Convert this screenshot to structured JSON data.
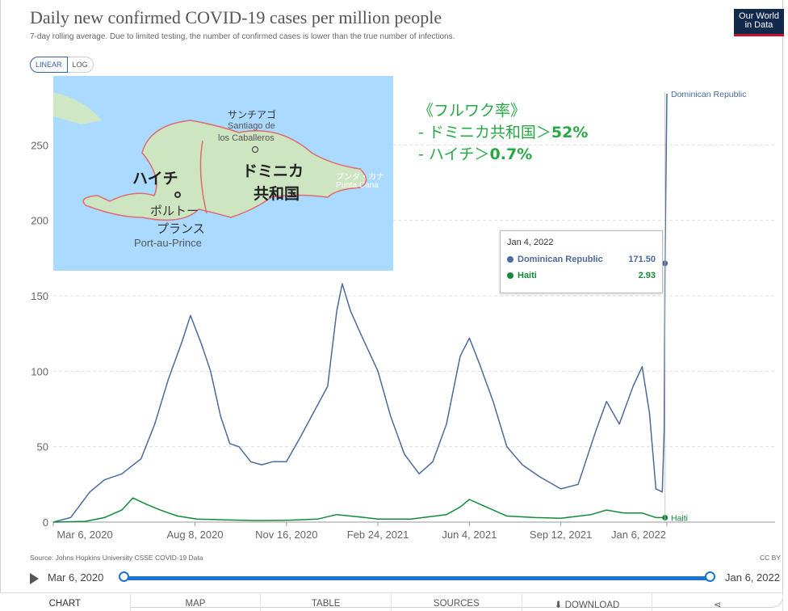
{
  "header": {
    "title": "Daily new confirmed COVID-19 cases per million people",
    "subtitle": "7-day rolling average. Due to limited testing, the number of confirmed cases is lower than the true number of infections.",
    "logo_line1": "Our World",
    "logo_line2": "in Data",
    "logo_bg": "#13294b",
    "logo_accent": "#c8102e"
  },
  "scale_toggle": {
    "linear_label": "LINEAR",
    "log_label": "LOG",
    "selected": "LINEAR"
  },
  "map_inset": {
    "labels": {
      "santiago_jp": "サンチアゴ",
      "santiago_es1": "Santiago de",
      "santiago_es2": "los Caballeros",
      "haiti_jp": "ハイチ",
      "dr_jp1": "ドミニカ",
      "dr_jp2": "共和国",
      "pap_jp1": "ポルトー",
      "pap_jp2": "プランス",
      "pap_en": "Port-au-Prince",
      "punta_jp": "プンタ・カナ",
      "punta_en": "Punta Cana"
    }
  },
  "annotation": {
    "heading": "《フルワク率》",
    "dr_prefix": "- ドミニカ共和国＞",
    "dr_value": "52%",
    "haiti_prefix": "- ハイチ＞",
    "haiti_value": "0.7%",
    "color": "#27a844"
  },
  "tooltip": {
    "date": "Jan 4, 2022",
    "rows": [
      {
        "name": "Dominican Republic",
        "value": "171.50",
        "color": "#4c6a9c"
      },
      {
        "name": "Haiti",
        "value": "2.93",
        "color": "#138a3a"
      }
    ]
  },
  "chart_data": {
    "type": "line",
    "title": "Daily new confirmed COVID-19 cases per million people",
    "ylim": [
      0,
      285
    ],
    "yticks": [
      0,
      50,
      100,
      150,
      200,
      250
    ],
    "xtick_labels": [
      "Mar 6, 2020",
      "Aug 8, 2020",
      "Nov 16, 2020",
      "Feb 24, 2021",
      "Jun 4, 2021",
      "Sep 12, 2021",
      "Jan 6, 2022"
    ],
    "grid": true,
    "series": [
      {
        "name": "Dominican Republic",
        "color": "#4c6a9c",
        "points": [
          [
            "2020-03-06",
            0
          ],
          [
            "2020-03-25",
            3
          ],
          [
            "2020-04-15",
            20
          ],
          [
            "2020-05-01",
            28
          ],
          [
            "2020-05-20",
            32
          ],
          [
            "2020-06-10",
            42
          ],
          [
            "2020-06-25",
            65
          ],
          [
            "2020-07-10",
            95
          ],
          [
            "2020-07-25",
            120
          ],
          [
            "2020-08-03",
            137
          ],
          [
            "2020-08-15",
            118
          ],
          [
            "2020-08-25",
            100
          ],
          [
            "2020-09-05",
            70
          ],
          [
            "2020-09-15",
            52
          ],
          [
            "2020-09-25",
            50
          ],
          [
            "2020-10-08",
            40
          ],
          [
            "2020-10-20",
            38
          ],
          [
            "2020-11-01",
            40
          ],
          [
            "2020-11-16",
            40
          ],
          [
            "2020-11-30",
            55
          ],
          [
            "2020-12-15",
            72
          ],
          [
            "2020-12-31",
            90
          ],
          [
            "2021-01-10",
            140
          ],
          [
            "2021-01-16",
            158
          ],
          [
            "2021-01-25",
            140
          ],
          [
            "2021-02-05",
            125
          ],
          [
            "2021-02-24",
            100
          ],
          [
            "2021-03-10",
            70
          ],
          [
            "2021-03-25",
            45
          ],
          [
            "2021-04-10",
            32
          ],
          [
            "2021-04-25",
            40
          ],
          [
            "2021-05-10",
            65
          ],
          [
            "2021-05-25",
            110
          ],
          [
            "2021-06-04",
            122
          ],
          [
            "2021-06-15",
            105
          ],
          [
            "2021-06-30",
            80
          ],
          [
            "2021-07-15",
            50
          ],
          [
            "2021-08-01",
            38
          ],
          [
            "2021-08-20",
            30
          ],
          [
            "2021-09-12",
            22
          ],
          [
            "2021-10-01",
            25
          ],
          [
            "2021-10-20",
            60
          ],
          [
            "2021-11-01",
            80
          ],
          [
            "2021-11-15",
            65
          ],
          [
            "2021-11-30",
            90
          ],
          [
            "2021-12-10",
            103
          ],
          [
            "2021-12-18",
            72
          ],
          [
            "2021-12-25",
            22
          ],
          [
            "2022-01-01",
            20
          ],
          [
            "2022-01-03",
            60
          ],
          [
            "2022-01-04",
            171.5
          ],
          [
            "2022-01-06",
            284
          ]
        ]
      },
      {
        "name": "Haiti",
        "color": "#138a3a",
        "points": [
          [
            "2020-03-06",
            0
          ],
          [
            "2020-04-10",
            0.5
          ],
          [
            "2020-05-01",
            3
          ],
          [
            "2020-05-20",
            8
          ],
          [
            "2020-06-01",
            16
          ],
          [
            "2020-06-15",
            12
          ],
          [
            "2020-07-01",
            8
          ],
          [
            "2020-07-20",
            4
          ],
          [
            "2020-08-10",
            2
          ],
          [
            "2020-09-10",
            1.5
          ],
          [
            "2020-10-15",
            1
          ],
          [
            "2020-11-16",
            1.2
          ],
          [
            "2020-12-20",
            2
          ],
          [
            "2021-01-10",
            5
          ],
          [
            "2021-02-10",
            3
          ],
          [
            "2021-02-24",
            2
          ],
          [
            "2021-04-01",
            2
          ],
          [
            "2021-05-10",
            5
          ],
          [
            "2021-05-25",
            10
          ],
          [
            "2021-06-04",
            15
          ],
          [
            "2021-06-15",
            12
          ],
          [
            "2021-06-30",
            8
          ],
          [
            "2021-07-15",
            4
          ],
          [
            "2021-08-15",
            3
          ],
          [
            "2021-09-12",
            2.5
          ],
          [
            "2021-10-15",
            5
          ],
          [
            "2021-11-01",
            8
          ],
          [
            "2021-11-20",
            6
          ],
          [
            "2021-12-10",
            6
          ],
          [
            "2021-12-25",
            3
          ],
          [
            "2022-01-04",
            2.93
          ],
          [
            "2022-01-06",
            3
          ]
        ]
      }
    ]
  },
  "footer": {
    "source": "Source: Johns Hopkins University CSSE COVID-19 Data",
    "license": "CC BY"
  },
  "timeline": {
    "start": "Mar 6, 2020",
    "end": "Jan 6, 2022"
  },
  "tabs": [
    "CHART",
    "MAP",
    "TABLE",
    "SOURCES",
    "DOWNLOAD",
    "SHARE"
  ],
  "active_tab": "CHART"
}
